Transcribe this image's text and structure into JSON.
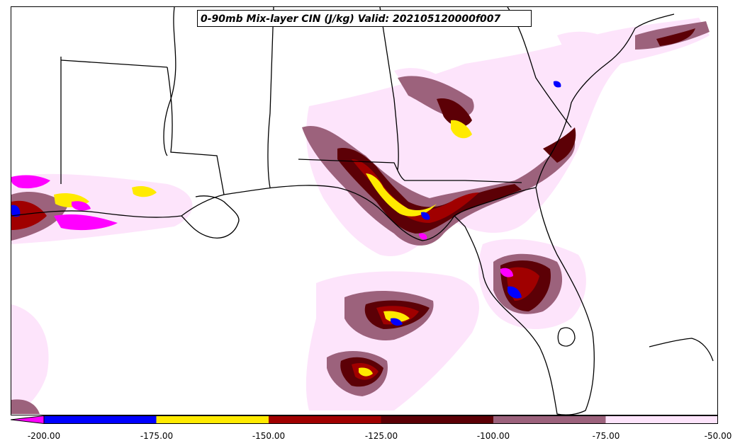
{
  "title": "0-90mb Mix-layer CIN (J/kg) Valid: 202105120000f007",
  "colorbar": {
    "ticks": [
      "-200.00",
      "-175.00",
      "-150.00",
      "-125.00",
      "-100.00",
      "-75.00",
      "-50.00"
    ],
    "bins": [
      {
        "range": "< -200",
        "color": "#ff00ff"
      },
      {
        "range": "-200 to -175",
        "color": "#0000ff"
      },
      {
        "range": "-175 to -150",
        "color": "#ffea00"
      },
      {
        "range": "-150 to -125",
        "color": "#a00000"
      },
      {
        "range": "-125 to -100",
        "color": "#5c0006"
      },
      {
        "range": "-100 to -75",
        "color": "#9c627c"
      },
      {
        "range": "-75 to -50",
        "color": "#fde4fb"
      }
    ],
    "extend": "min"
  }
}
